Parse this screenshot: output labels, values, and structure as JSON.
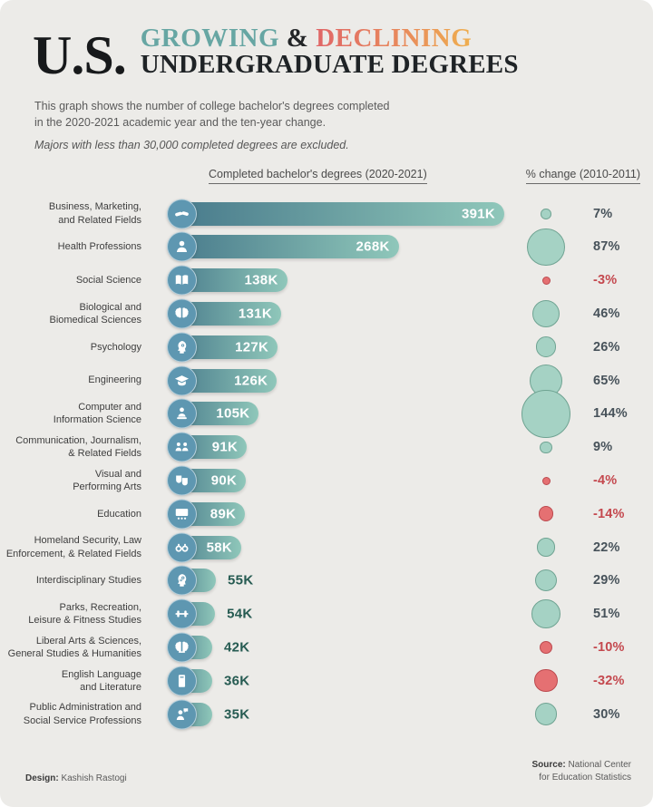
{
  "header": {
    "kicker": "U.S.",
    "growing": "GROWING",
    "amp": "&",
    "declining": "DECLINING",
    "line2": "UNDERGRADUATE DEGREES",
    "colors": {
      "growing": "#67A6A3",
      "declining_start": "#E06667",
      "declining_end": "#EFAF4F",
      "dark": "#1F2326"
    }
  },
  "description": {
    "text": "This graph shows the number of college bachelor's degrees completed\nin the 2020-2021 academic year and the ten-year change.",
    "note": "Majors with less than 30,000 completed degrees are excluded."
  },
  "chart_data": {
    "type": "bar",
    "column_headers": {
      "bars": "Completed bachelor's degrees (2020-2021)",
      "change": "% change (2010-2011)"
    },
    "value_unit": "K",
    "max_value": 391,
    "colors": {
      "panel_bg": "#ECEBE8",
      "bar_gradient_start": "#47798B",
      "bar_gradient_end": "#8FC7BA",
      "icon_circle": "#5E97B1",
      "value_inside_text": "#FFFFFF",
      "value_outside_text": "#265B52",
      "positive_bubble": "#A5D2C4",
      "positive_bubble_border": "#6FA392",
      "negative_bubble": "#E57072",
      "negative_bubble_border": "#BC4A4F",
      "positive_text": "#47525A",
      "negative_text": "#C4484E"
    },
    "rows": [
      {
        "label": "Business, Marketing,\nand Related Fields",
        "value": 391,
        "value_label": "391K",
        "icon": "handshake-icon",
        "change": 7,
        "change_label": "7%"
      },
      {
        "label": "Health Professions",
        "value": 268,
        "value_label": "268K",
        "icon": "person-icon",
        "change": 87,
        "change_label": "87%"
      },
      {
        "label": "Social Science",
        "value": 138,
        "value_label": "138K",
        "icon": "open-book-icon",
        "change": -3,
        "change_label": "-3%"
      },
      {
        "label": "Biological and\nBiomedical Sciences",
        "value": 131,
        "value_label": "131K",
        "icon": "brain-icon",
        "change": 46,
        "change_label": "46%"
      },
      {
        "label": "Psychology",
        "value": 127,
        "value_label": "127K",
        "icon": "head-brain-icon",
        "change": 26,
        "change_label": "26%"
      },
      {
        "label": "Engineering",
        "value": 126,
        "value_label": "126K",
        "icon": "graduation-cap-icon",
        "change": 65,
        "change_label": "65%"
      },
      {
        "label": "Computer and\nInformation Science",
        "value": 105,
        "value_label": "105K",
        "icon": "computer-user-icon",
        "change": 144,
        "change_label": "144%"
      },
      {
        "label": "Communication, Journalism,\n& Related Fields",
        "value": 91,
        "value_label": "91K",
        "icon": "conversation-icon",
        "change": 9,
        "change_label": "9%"
      },
      {
        "label": "Visual and\nPerforming Arts",
        "value": 90,
        "value_label": "90K",
        "icon": "theater-masks-icon",
        "change": -4,
        "change_label": "-4%"
      },
      {
        "label": "Education",
        "value": 89,
        "value_label": "89K",
        "icon": "classroom-board-icon",
        "change": -14,
        "change_label": "-14%"
      },
      {
        "label": "Homeland Security, Law\nEnforcement, & Related Fields",
        "value": 58,
        "value_label": "58K",
        "icon": "handcuffs-icon",
        "change": 22,
        "change_label": "22%"
      },
      {
        "label": "Interdisciplinary Studies",
        "value": 55,
        "value_label": "55K",
        "icon": "head-gears-icon",
        "change": 29,
        "change_label": "29%"
      },
      {
        "label": "Parks, Recreation,\nLeisure & Fitness Studies",
        "value": 54,
        "value_label": "54K",
        "icon": "dumbbell-icon",
        "change": 51,
        "change_label": "51%"
      },
      {
        "label": "Liberal Arts & Sciences,\nGeneral Studies & Humanities",
        "value": 42,
        "value_label": "42K",
        "icon": "brain-book-icon",
        "change": -10,
        "change_label": "-10%"
      },
      {
        "label": "English Language\nand Literature",
        "value": 36,
        "value_label": "36K",
        "icon": "book-icon",
        "change": -32,
        "change_label": "-32%"
      },
      {
        "label": "Public Administration and\nSocial Service Professions",
        "value": 35,
        "value_label": "35K",
        "icon": "person-speech-icon",
        "change": 30,
        "change_label": "30%"
      }
    ]
  },
  "footer": {
    "design_label": "Design:",
    "design_name": "Kashish Rastogi",
    "source_label": "Source:",
    "source_text": "National Center\nfor Education Statistics"
  }
}
